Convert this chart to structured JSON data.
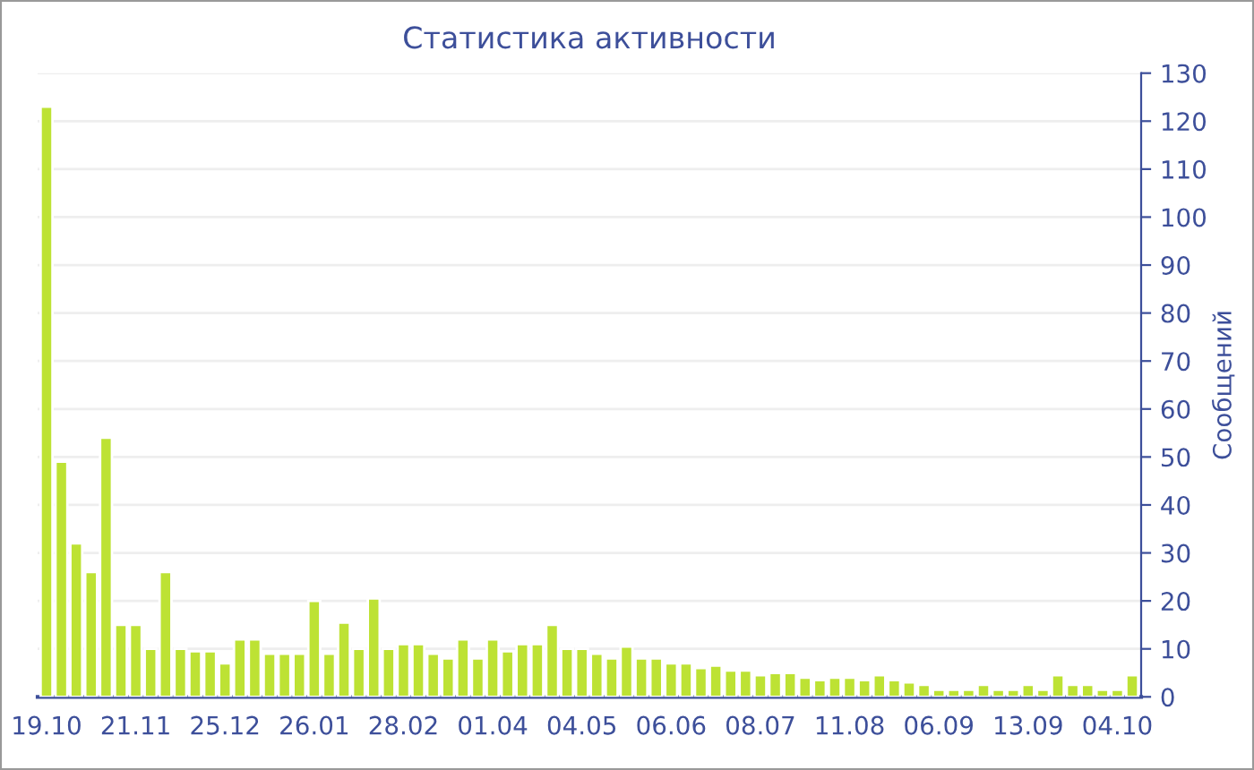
{
  "chart_data": {
    "type": "bar",
    "title": "Статистика активности",
    "ylabel": "Сообщений",
    "categories": [
      "19.10",
      null,
      null,
      null,
      null,
      null,
      "21.11",
      null,
      null,
      null,
      null,
      null,
      "25.12",
      null,
      null,
      null,
      null,
      null,
      "26.01",
      null,
      null,
      null,
      null,
      null,
      "28.02",
      null,
      null,
      null,
      null,
      null,
      "01.04",
      null,
      null,
      null,
      null,
      null,
      "04.05",
      null,
      null,
      null,
      null,
      null,
      "06.06",
      null,
      null,
      null,
      null,
      null,
      "08.07",
      null,
      null,
      null,
      null,
      null,
      "11.08",
      null,
      null,
      null,
      null,
      null,
      "06.09",
      null,
      null,
      null,
      null,
      null,
      "13.09",
      null,
      null,
      null,
      null,
      null,
      "04.10",
      null
    ],
    "values": [
      123,
      49,
      32,
      26,
      54,
      15,
      15,
      10,
      26,
      10,
      9.5,
      9.5,
      7,
      12,
      12,
      9,
      9,
      9,
      20,
      9,
      15.5,
      10,
      20.5,
      10,
      11,
      11,
      9,
      8,
      12,
      8,
      12,
      9.5,
      11,
      11,
      15,
      10,
      10,
      9,
      8,
      10.5,
      8,
      8,
      7,
      7,
      6,
      6.5,
      5.5,
      5.5,
      4.5,
      5,
      5,
      4,
      3.5,
      4,
      4,
      3.5,
      4.5,
      3.5,
      3,
      2.5,
      1.5,
      1.5,
      1.5,
      2.5,
      1.5,
      1.5,
      2.5,
      1.5,
      4.5,
      2.5,
      2.5,
      1.5,
      1.5,
      4.5
    ],
    "color": "#bde234",
    "ylim": [
      0,
      130
    ],
    "yticks": [
      0,
      10,
      20,
      30,
      40,
      50,
      60,
      70,
      80,
      90,
      100,
      110,
      120,
      130
    ],
    "grid": "y",
    "legend": false
  }
}
